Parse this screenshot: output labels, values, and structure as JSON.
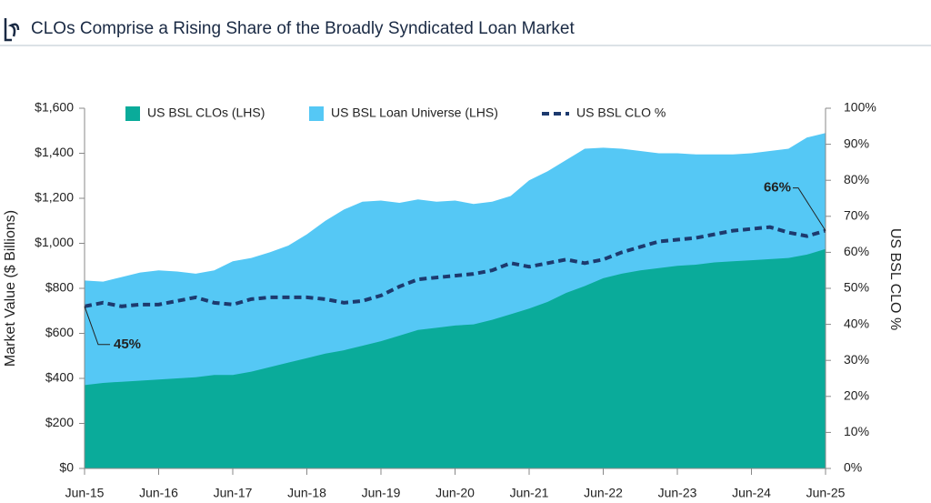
{
  "chart_data": {
    "type": "area",
    "title": "CLOs Comprise a Rising Share of the Broadly Syndicated Loan Market",
    "y_label": "Market Value ($ Billions)",
    "y2_label": "US BSL CLO %",
    "categories": [
      "Jun-15",
      null,
      null,
      null,
      "Jun-16",
      null,
      null,
      null,
      "Jun-17",
      null,
      null,
      null,
      "Jun-18",
      null,
      null,
      null,
      "Jun-19",
      null,
      null,
      null,
      "Jun-20",
      null,
      null,
      null,
      "Jun-21",
      null,
      null,
      null,
      "Jun-22",
      null,
      null,
      null,
      "Jun-23",
      null,
      null,
      null,
      "Jun-24",
      null,
      null,
      null,
      "Jun-25"
    ],
    "series": [
      {
        "name": "US BSL Loan Universe (LHS)",
        "color": "#55c8f5",
        "values": [
          835,
          830,
          850,
          870,
          880,
          875,
          865,
          880,
          920,
          935,
          960,
          990,
          1040,
          1100,
          1150,
          1185,
          1190,
          1180,
          1195,
          1185,
          1190,
          1175,
          1185,
          1210,
          1280,
          1320,
          1370,
          1420,
          1425,
          1420,
          1410,
          1400,
          1400,
          1395,
          1395,
          1395,
          1400,
          1410,
          1420,
          1470,
          1490
        ]
      },
      {
        "name": "US BSL CLOs (LHS)",
        "color": "#0aab9a",
        "values": [
          370,
          380,
          385,
          390,
          395,
          400,
          405,
          415,
          415,
          430,
          450,
          470,
          490,
          510,
          525,
          545,
          565,
          590,
          615,
          625,
          635,
          640,
          660,
          685,
          710,
          740,
          780,
          810,
          845,
          865,
          880,
          890,
          900,
          905,
          915,
          920,
          925,
          930,
          935,
          950,
          975
        ]
      },
      {
        "name": "US BSL CLO %",
        "color": "#1d3a6e",
        "axis": "y2",
        "dashed": true,
        "values": [
          45,
          46,
          45,
          45.5,
          45.5,
          46.5,
          47.5,
          46,
          45.5,
          47,
          47.5,
          47.5,
          47.5,
          47,
          46,
          46.5,
          48,
          50.5,
          52.5,
          53,
          53.5,
          54,
          55,
          57,
          56,
          57,
          58,
          57,
          58,
          60,
          61.5,
          63,
          63.5,
          64,
          65,
          66,
          66.5,
          67,
          65.5,
          64.5,
          66
        ]
      }
    ],
    "annotations": [
      "45%",
      "66%"
    ],
    "legend_order": [
      1,
      0,
      2
    ],
    "ylim": [
      0,
      1600
    ],
    "yticks": [
      {
        "value": 0,
        "label": "$0"
      },
      {
        "value": 200,
        "label": "$200"
      },
      {
        "value": 400,
        "label": "$400"
      },
      {
        "value": 600,
        "label": "$600"
      },
      {
        "value": 800,
        "label": "$800"
      },
      {
        "value": 1000,
        "label": "$1,000"
      },
      {
        "value": 1200,
        "label": "$1,200"
      },
      {
        "value": 1400,
        "label": "$1,400"
      },
      {
        "value": 1600,
        "label": "$1,600"
      }
    ],
    "y2lim": [
      0,
      100
    ],
    "y2ticks": [
      {
        "value": 0,
        "label": "0%"
      },
      {
        "value": 10,
        "label": "10%"
      },
      {
        "value": 20,
        "label": "20%"
      },
      {
        "value": 30,
        "label": "30%"
      },
      {
        "value": 40,
        "label": "40%"
      },
      {
        "value": 50,
        "label": "50%"
      },
      {
        "value": 60,
        "label": "60%"
      },
      {
        "value": 70,
        "label": "70%"
      },
      {
        "value": 80,
        "label": "80%"
      },
      {
        "value": 90,
        "label": "90%"
      },
      {
        "value": 100,
        "label": "100%"
      }
    ],
    "grid": false
  }
}
